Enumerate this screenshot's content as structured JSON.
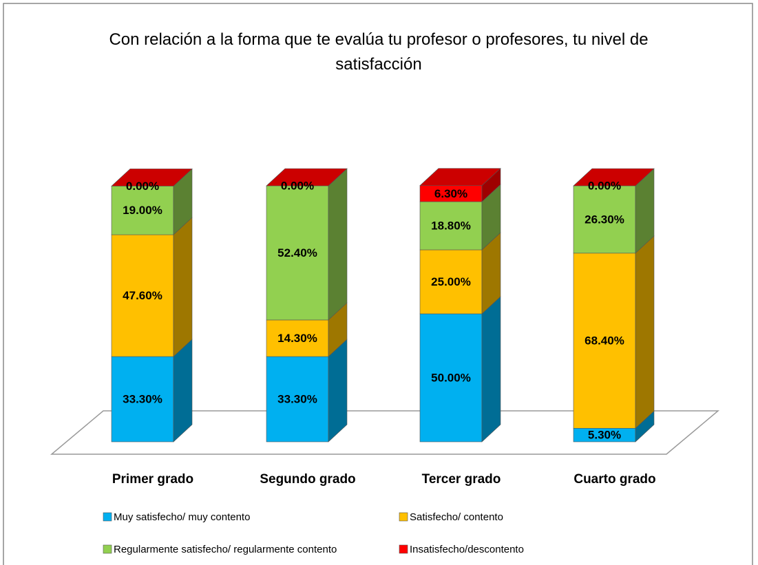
{
  "chart_data": {
    "type": "bar3d_stacked",
    "title": "Con relación a la forma que te evalúa tu profesor o profesores, tu nivel de satisfacción",
    "categories": [
      "Primer grado",
      "Segundo grado",
      "Tercer grado",
      "Cuarto grado"
    ],
    "series": [
      {
        "name": "Muy satisfecho/ muy contento",
        "color": "#00b0f0",
        "values": [
          33.3,
          33.3,
          50.0,
          5.3
        ],
        "value_labels": [
          "33.30%",
          "33.30%",
          "50.00%",
          "5.30%"
        ]
      },
      {
        "name": "Satisfecho/ contento",
        "color": "#ffc000",
        "values": [
          47.6,
          14.3,
          25.0,
          68.4
        ],
        "value_labels": [
          "47.60%",
          "14.30%",
          "25.00%",
          "68.40%"
        ]
      },
      {
        "name": "Regularmente satisfecho/ regularmente contento",
        "color": "#92d050",
        "values": [
          19.0,
          52.4,
          18.8,
          26.3
        ],
        "value_labels": [
          "19.00%",
          "52.40%",
          "18.80%",
          "26.30%"
        ]
      },
      {
        "name": "Insatisfecho/descontento",
        "color": "#ff0000",
        "values": [
          0.0,
          0.0,
          6.3,
          0.0
        ],
        "value_labels": [
          "0.00%",
          "0.00%",
          "6.30%",
          "0.00%"
        ]
      }
    ]
  }
}
